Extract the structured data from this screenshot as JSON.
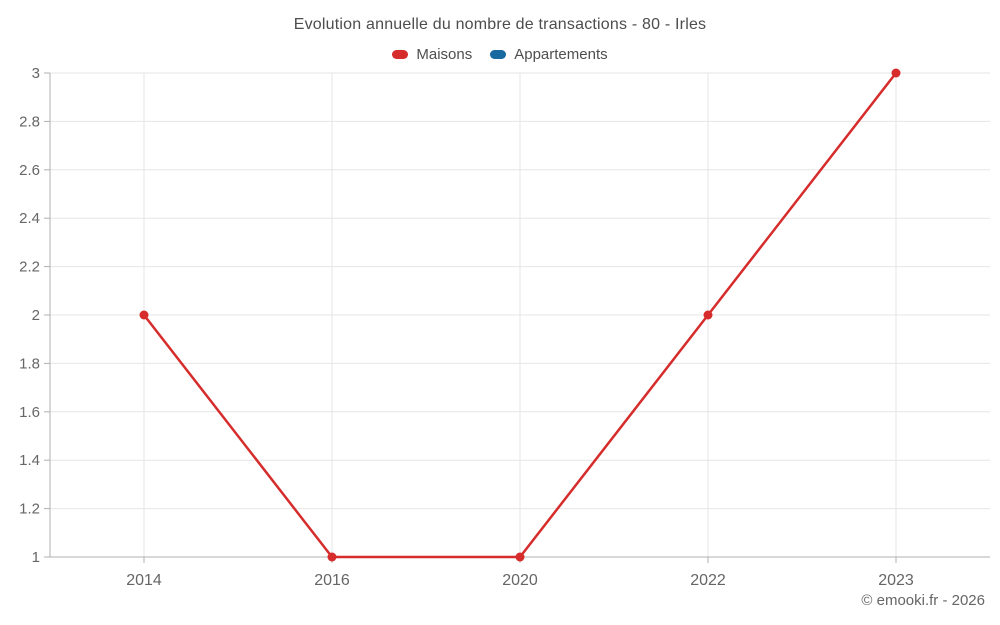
{
  "header": {
    "title": "Evolution annuelle du nombre de transactions - 80 - Irles"
  },
  "footer": {
    "credit": "© emooki.fr - 2026"
  },
  "colors": {
    "maisons": "#d62c2c",
    "appartements": "#1769a0",
    "gridline": "#e6e6e6",
    "axis_line": "#b0b0b0",
    "axis_label": "#666666",
    "title_text": "#4d4d4d"
  },
  "chart_data": {
    "type": "line",
    "title": "Evolution annuelle du nombre de transactions - 80 - Irles",
    "categories": [
      "2014",
      "2016",
      "2020",
      "2022",
      "2023"
    ],
    "series": [
      {
        "name": "Maisons",
        "color": "#d62c2c",
        "values": [
          2,
          1,
          1,
          2,
          3
        ]
      },
      {
        "name": "Appartements",
        "color": "#1769a0",
        "values": []
      }
    ],
    "xlabel": "",
    "ylabel": "",
    "ylim": [
      1,
      3
    ],
    "ytick_step": 0.2,
    "grid": true,
    "legend_position": "top"
  }
}
